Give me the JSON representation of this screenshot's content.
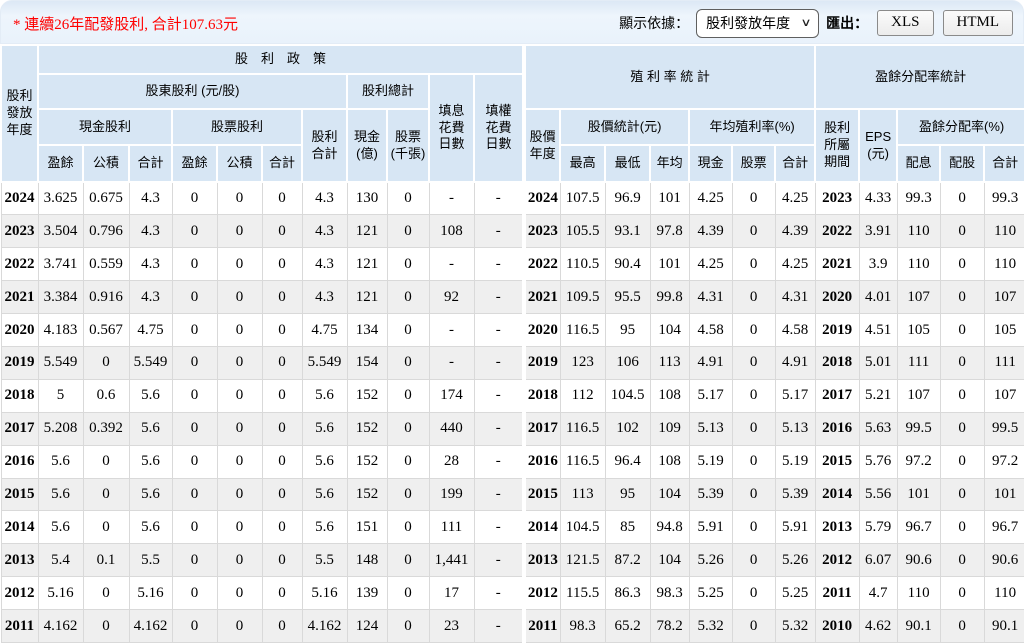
{
  "toolbar": {
    "note": "* 連續26年配發股利, 合計107.63元",
    "display_by_label": "顯示依據：",
    "display_select": {
      "value": "股利發放年度",
      "options": [
        "股利發放年度"
      ]
    },
    "export_label": "匯出：",
    "export_buttons": [
      "XLS",
      "HTML"
    ]
  },
  "table": {
    "header": {
      "dividend_year": "股利\n發放\n年度",
      "policy": "股　利　政　策",
      "yield_stats": "殖 利 率 統 計",
      "payout_stats": "盈餘分配率統計",
      "shareholder_dividend": "股東股利 (元/股)",
      "dividend_sum": "股利總計",
      "fill_div_days": "填息\n花費\n日數",
      "fill_right_days": "填權\n花費\n日數",
      "cash_dividend": "現金股利",
      "stock_dividend": "股票股利",
      "dividend_total": "股利\n合計",
      "cash_billion": "現金\n(億)",
      "stock_thousand": "股票\n(千張)",
      "price_year": "股價\n年度",
      "price_stats": "股價統計(元)",
      "avg_yield": "年均殖利率(%)",
      "belong_period": "股利\n所屬\n期間",
      "eps": "EPS\n(元)",
      "payout_ratio": "盈餘分配率(%)",
      "leaves": [
        "盈餘",
        "公積",
        "合計",
        "盈餘",
        "公積",
        "合計",
        "最高",
        "最低",
        "年均",
        "現金",
        "股票",
        "合計",
        "配息",
        "配股",
        "合計"
      ]
    },
    "columns": [
      "year",
      "cash_earn",
      "cash_surplus",
      "cash_total",
      "stock_earn",
      "stock_surplus",
      "stock_total",
      "div_total",
      "total_cash_billion",
      "total_stock_thousand",
      "fill_div_days",
      "fill_right_days",
      "price_year",
      "price_high",
      "price_low",
      "price_avg",
      "yield_cash",
      "yield_stock",
      "yield_total",
      "belong_period",
      "eps",
      "payout_cash",
      "payout_stock",
      "payout_total"
    ],
    "rows": [
      [
        "2024",
        "3.625",
        "0.675",
        "4.3",
        "0",
        "0",
        "0",
        "4.3",
        "130",
        "0",
        "-",
        "-",
        "2024",
        "107.5",
        "96.9",
        "101",
        "4.25",
        "0",
        "4.25",
        "2023",
        "4.33",
        "99.3",
        "0",
        "99.3"
      ],
      [
        "2023",
        "3.504",
        "0.796",
        "4.3",
        "0",
        "0",
        "0",
        "4.3",
        "121",
        "0",
        "108",
        "-",
        "2023",
        "105.5",
        "93.1",
        "97.8",
        "4.39",
        "0",
        "4.39",
        "2022",
        "3.91",
        "110",
        "0",
        "110"
      ],
      [
        "2022",
        "3.741",
        "0.559",
        "4.3",
        "0",
        "0",
        "0",
        "4.3",
        "121",
        "0",
        "-",
        "-",
        "2022",
        "110.5",
        "90.4",
        "101",
        "4.25",
        "0",
        "4.25",
        "2021",
        "3.9",
        "110",
        "0",
        "110"
      ],
      [
        "2021",
        "3.384",
        "0.916",
        "4.3",
        "0",
        "0",
        "0",
        "4.3",
        "121",
        "0",
        "92",
        "-",
        "2021",
        "109.5",
        "95.5",
        "99.8",
        "4.31",
        "0",
        "4.31",
        "2020",
        "4.01",
        "107",
        "0",
        "107"
      ],
      [
        "2020",
        "4.183",
        "0.567",
        "4.75",
        "0",
        "0",
        "0",
        "4.75",
        "134",
        "0",
        "-",
        "-",
        "2020",
        "116.5",
        "95",
        "104",
        "4.58",
        "0",
        "4.58",
        "2019",
        "4.51",
        "105",
        "0",
        "105"
      ],
      [
        "2019",
        "5.549",
        "0",
        "5.549",
        "0",
        "0",
        "0",
        "5.549",
        "154",
        "0",
        "-",
        "-",
        "2019",
        "123",
        "106",
        "113",
        "4.91",
        "0",
        "4.91",
        "2018",
        "5.01",
        "111",
        "0",
        "111"
      ],
      [
        "2018",
        "5",
        "0.6",
        "5.6",
        "0",
        "0",
        "0",
        "5.6",
        "152",
        "0",
        "174",
        "-",
        "2018",
        "112",
        "104.5",
        "108",
        "5.17",
        "0",
        "5.17",
        "2017",
        "5.21",
        "107",
        "0",
        "107"
      ],
      [
        "2017",
        "5.208",
        "0.392",
        "5.6",
        "0",
        "0",
        "0",
        "5.6",
        "152",
        "0",
        "440",
        "-",
        "2017",
        "116.5",
        "102",
        "109",
        "5.13",
        "0",
        "5.13",
        "2016",
        "5.63",
        "99.5",
        "0",
        "99.5"
      ],
      [
        "2016",
        "5.6",
        "0",
        "5.6",
        "0",
        "0",
        "0",
        "5.6",
        "152",
        "0",
        "28",
        "-",
        "2016",
        "116.5",
        "96.4",
        "108",
        "5.19",
        "0",
        "5.19",
        "2015",
        "5.76",
        "97.2",
        "0",
        "97.2"
      ],
      [
        "2015",
        "5.6",
        "0",
        "5.6",
        "0",
        "0",
        "0",
        "5.6",
        "152",
        "0",
        "199",
        "-",
        "2015",
        "113",
        "95",
        "104",
        "5.39",
        "0",
        "5.39",
        "2014",
        "5.56",
        "101",
        "0",
        "101"
      ],
      [
        "2014",
        "5.6",
        "0",
        "5.6",
        "0",
        "0",
        "0",
        "5.6",
        "151",
        "0",
        "111",
        "-",
        "2014",
        "104.5",
        "85",
        "94.8",
        "5.91",
        "0",
        "5.91",
        "2013",
        "5.79",
        "96.7",
        "0",
        "96.7"
      ],
      [
        "2013",
        "5.4",
        "0.1",
        "5.5",
        "0",
        "0",
        "0",
        "5.5",
        "148",
        "0",
        "1,441",
        "-",
        "2013",
        "121.5",
        "87.2",
        "104",
        "5.26",
        "0",
        "5.26",
        "2012",
        "6.07",
        "90.6",
        "0",
        "90.6"
      ],
      [
        "2012",
        "5.16",
        "0",
        "5.16",
        "0",
        "0",
        "0",
        "5.16",
        "139",
        "0",
        "17",
        "-",
        "2012",
        "115.5",
        "86.3",
        "98.3",
        "5.25",
        "0",
        "5.25",
        "2011",
        "4.7",
        "110",
        "0",
        "110"
      ],
      [
        "2011",
        "4.162",
        "0",
        "4.162",
        "0",
        "0",
        "0",
        "4.162",
        "124",
        "0",
        "23",
        "-",
        "2011",
        "98.3",
        "65.2",
        "78.2",
        "5.32",
        "0",
        "5.32",
        "2010",
        "4.62",
        "90.1",
        "0",
        "90.1"
      ]
    ],
    "colors": {
      "header_bg": "#d7e6f4",
      "stripe_bg": "#efefef",
      "grid": "#d9d9d9",
      "note_red": "#ff0000"
    }
  }
}
